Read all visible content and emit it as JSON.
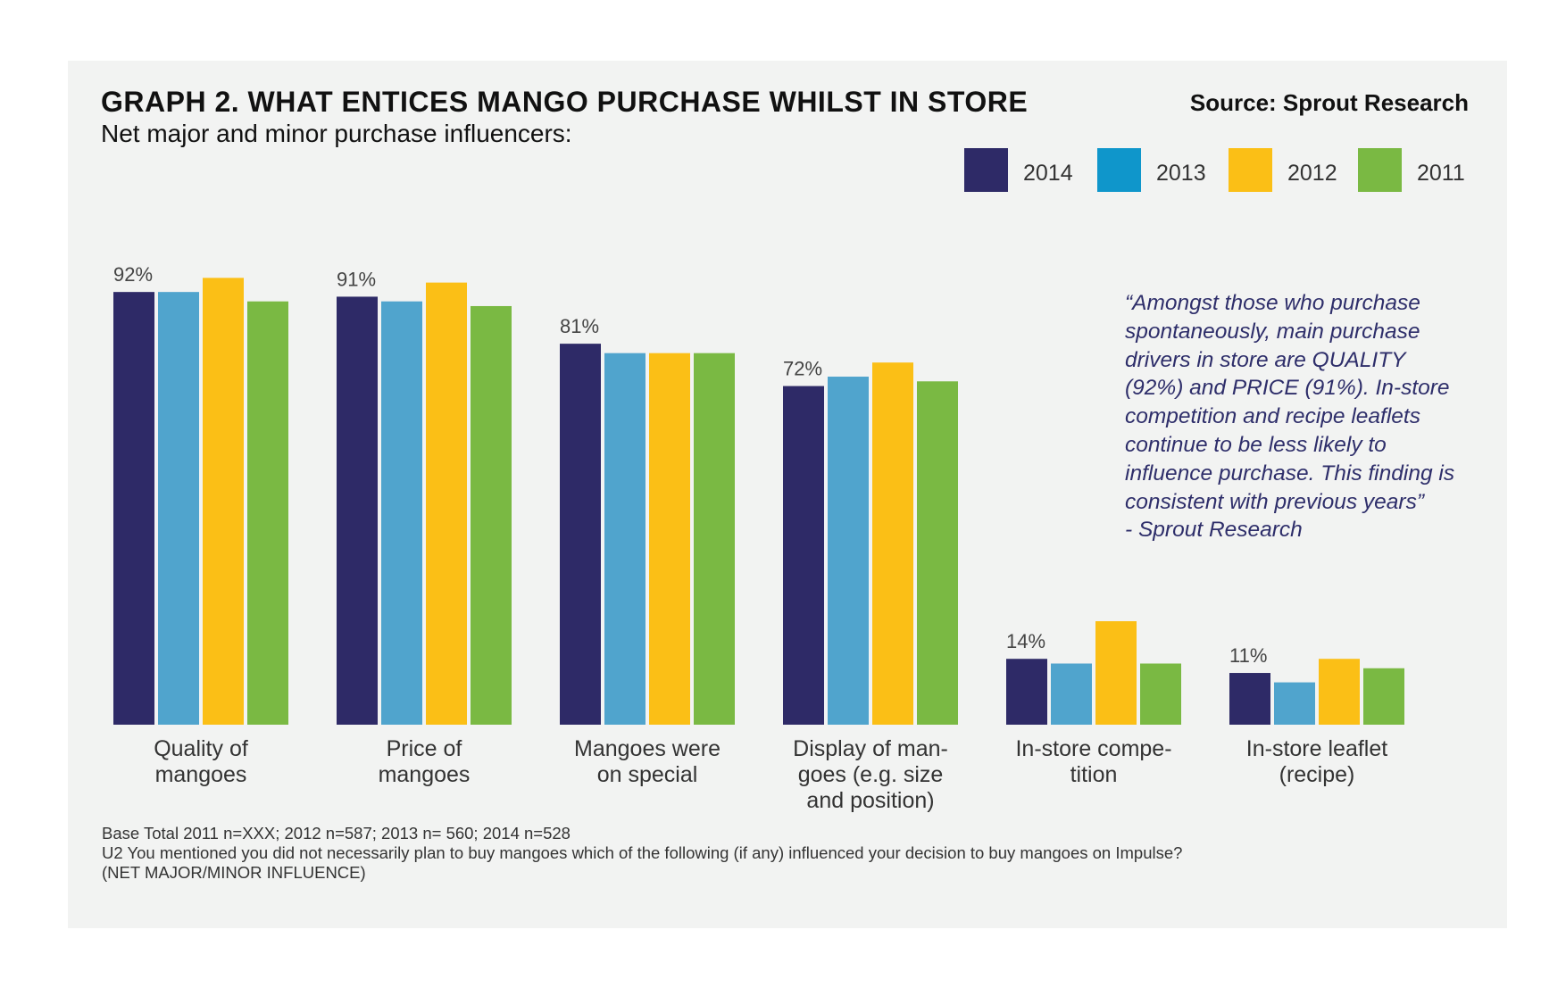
{
  "header": {
    "title": "GRAPH 2. WHAT ENTICES MANGO PURCHASE WHILST IN STORE",
    "subtitle": "Net major and minor purchase influencers:",
    "source": "Source: Sprout Research"
  },
  "colors": {
    "panel_bg": "#f2f3f2",
    "2014": "#2e2a67",
    "2013": "#50a4cd",
    "2012": "#fbbf16",
    "2011": "#7ab943",
    "legend_2013": "#0f96cb",
    "quote_text": "#2e2e6a"
  },
  "chart_data": {
    "type": "bar",
    "title": "GRAPH 2. WHAT ENTICES MANGO PURCHASE WHILST IN STORE",
    "subtitle": "Net major and minor purchase influencers:",
    "xlabel": "",
    "ylabel": "",
    "ylim": [
      0,
      100
    ],
    "grid": false,
    "legend_position": "top-right",
    "categories": [
      [
        "Quality of",
        "mangoes"
      ],
      [
        "Price of",
        "mangoes"
      ],
      [
        "Mangoes were",
        "on special"
      ],
      [
        "Display of man-",
        "goes (e.g. size",
        "and position)"
      ],
      [
        "In-store compe-",
        "tition"
      ],
      [
        "In-store leaflet",
        "(recipe)"
      ]
    ],
    "series": [
      {
        "name": "2014",
        "values": [
          92,
          91,
          81,
          72,
          14,
          11
        ]
      },
      {
        "name": "2013",
        "values": [
          92,
          90,
          79,
          74,
          13,
          9
        ]
      },
      {
        "name": "2012",
        "values": [
          95,
          94,
          79,
          77,
          22,
          14
        ]
      },
      {
        "name": "2011",
        "values": [
          90,
          89,
          79,
          73,
          13,
          12
        ]
      }
    ],
    "data_labels": [
      "92%",
      "91%",
      "81%",
      "72%",
      "14%",
      "11%"
    ]
  },
  "quote": {
    "lines": [
      "“Amongst those who purchase",
      "spontaneously, main purchase",
      "drivers in store are QUALITY",
      "(92%) and PRICE (91%). In-store",
      "competition and recipe leaflets",
      "continue to be less likely to",
      "influence purchase. This finding is",
      "consistent with previous years”",
      " - Sprout Research"
    ]
  },
  "footnote": {
    "lines": [
      "Base Total 2011 n=XXX; 2012 n=587; 2013 n= 560; 2014 n=528",
      "U2 You mentioned you did not necessarily plan to buy mangoes which of the following (if any) influenced your decision to buy mangoes on Impulse?",
      "(NET MAJOR/MINOR INFLUENCE)"
    ]
  }
}
